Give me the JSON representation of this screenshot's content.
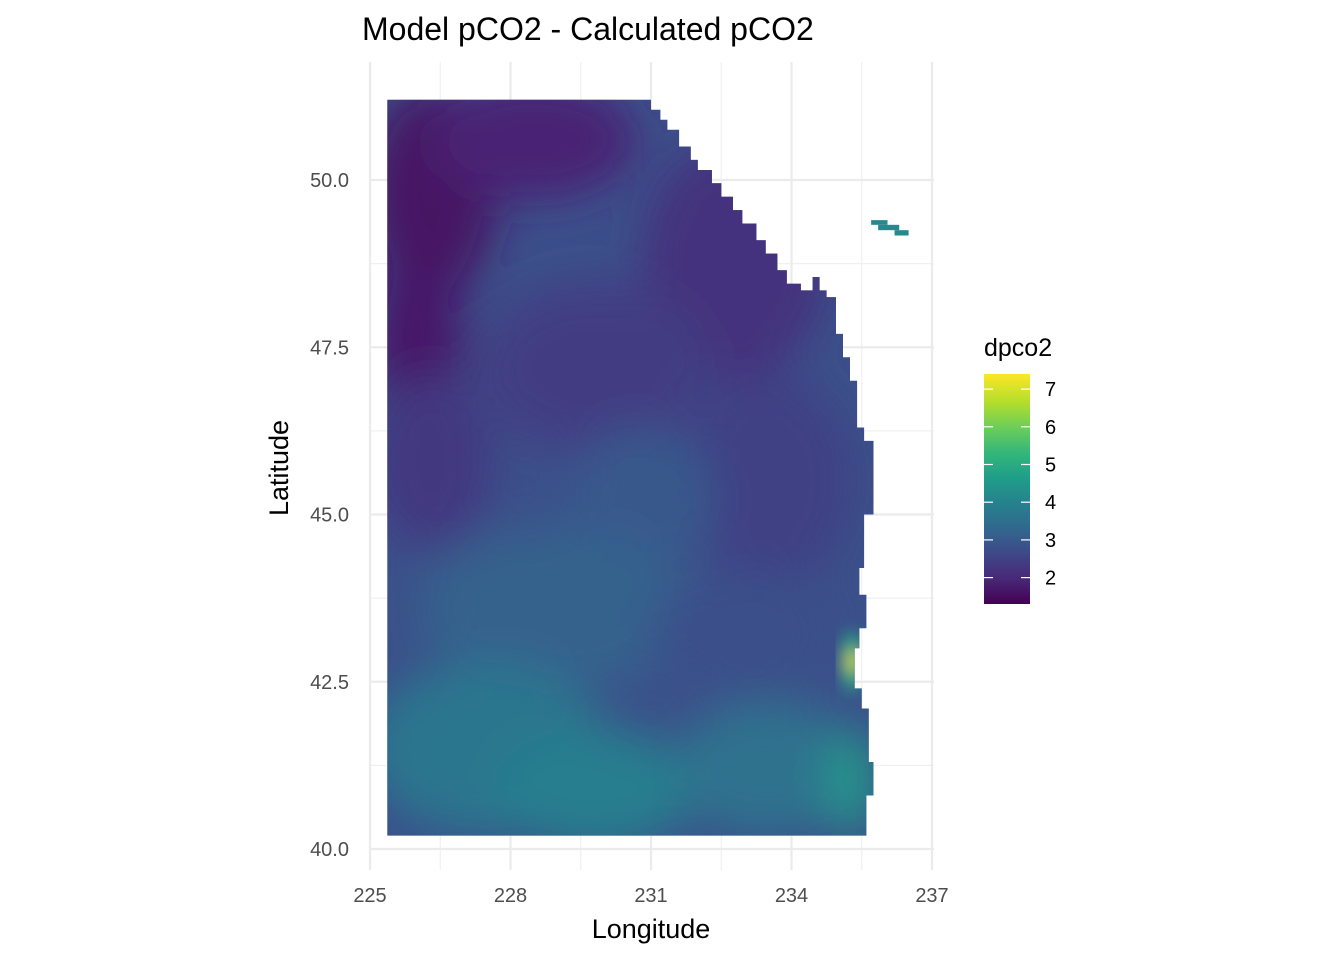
{
  "chart_data": {
    "type": "heatmap",
    "title": "Model pCO2 - Calculated pCO2",
    "xlabel": "Longitude",
    "ylabel": "Latitude",
    "xlim": [
      224.8,
      237.2
    ],
    "ylim": [
      39.6,
      51.3
    ],
    "x_ticks": [
      "225",
      "228",
      "231",
      "234",
      "237"
    ],
    "y_ticks": [
      "40.0",
      "42.5",
      "45.0",
      "47.5",
      "50.0"
    ],
    "grid": true,
    "legend": {
      "title": "dpco2",
      "placement": "right",
      "range": [
        1.3,
        7.4
      ],
      "ticks": [
        "2",
        "3",
        "4",
        "5",
        "6",
        "7"
      ],
      "palette": "viridis"
    },
    "colors": [
      "#440154",
      "#482878",
      "#3e4989",
      "#31688e",
      "#26828e",
      "#1f9e89",
      "#35b779",
      "#6ece58",
      "#b5de2b",
      "#fde725"
    ],
    "field_summary": {
      "domain_lon": [
        225.37,
        235.77
      ],
      "domain_lat": [
        40.2,
        51.2
      ],
      "northwest_value": 1.6,
      "north_coastal_value": 2.2,
      "central_value": 2.8,
      "southern_value": 3.7,
      "coastal_hotspot": {
        "lon": 235.3,
        "lat": 42.8,
        "value": 7.2
      }
    },
    "isolated_patch": {
      "lon": [
        235.7,
        236.5
      ],
      "lat": [
        49.1,
        49.4
      ],
      "value": 4.2
    }
  }
}
